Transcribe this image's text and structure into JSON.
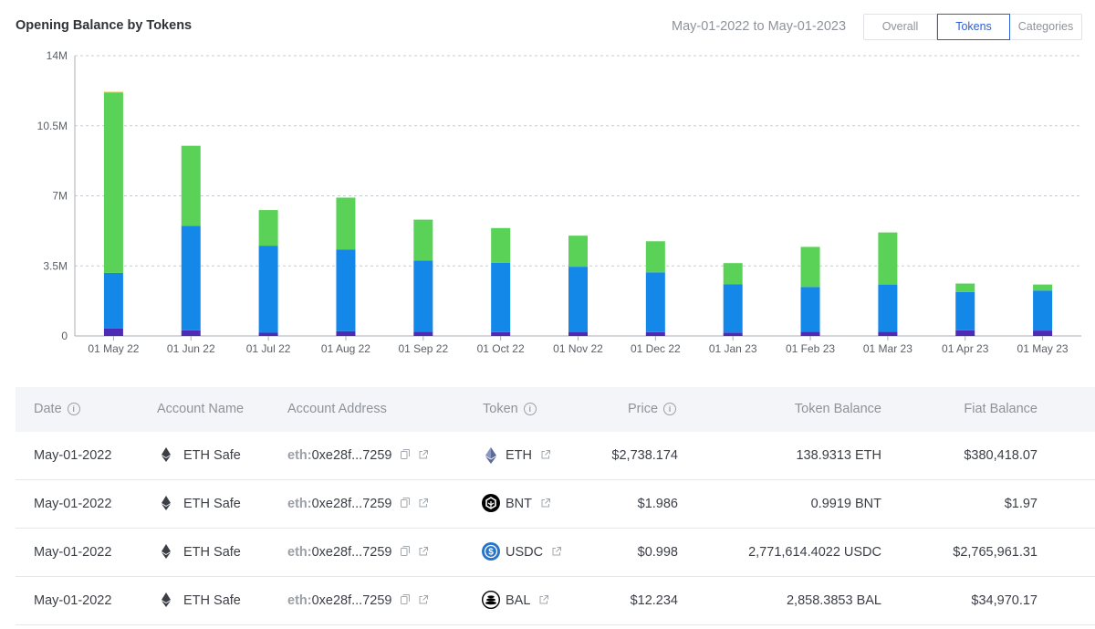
{
  "header": {
    "title": "Opening Balance by Tokens",
    "date_range": "May-01-2022 to May-01-2023",
    "tabs": [
      {
        "label": "Overall",
        "active": false
      },
      {
        "label": "Tokens",
        "active": true
      },
      {
        "label": "Categories",
        "active": false
      }
    ]
  },
  "colors": {
    "accent": "#2a5fd4",
    "series_green": "#5ad257",
    "series_blue": "#1488e8",
    "series_purple": "#4e2bb5",
    "series_yellow": "#e6d34a",
    "grid": "#c8ccd2"
  },
  "chart_data": {
    "type": "bar",
    "stacked": true,
    "categories": [
      "01 May 22",
      "01 Jun 22",
      "01 Jul 22",
      "01 Aug 22",
      "01 Sep 22",
      "01 Oct 22",
      "01 Nov 22",
      "01 Dec 22",
      "01 Jan 23",
      "01 Feb 23",
      "01 Mar 23",
      "01 Apr 23",
      "01 May 23"
    ],
    "series": [
      {
        "color": "#4e2bb5",
        "values": [
          0.38,
          0.28,
          0.16,
          0.24,
          0.21,
          0.19,
          0.2,
          0.19,
          0.17,
          0.21,
          0.21,
          0.28,
          0.27
        ]
      },
      {
        "color": "#1488e8",
        "values": [
          2.77,
          5.22,
          4.35,
          4.07,
          3.56,
          3.47,
          3.26,
          2.99,
          2.42,
          2.24,
          2.36,
          1.92,
          2.0
        ]
      },
      {
        "color": "#5ad257",
        "values": [
          9.02,
          4.0,
          1.78,
          2.6,
          2.04,
          1.73,
          1.55,
          1.55,
          1.05,
          2.0,
          2.6,
          0.42,
          0.3
        ]
      },
      {
        "color": "#e6d34a",
        "values": [
          0.03,
          0.0,
          0.0,
          0.0,
          0.0,
          0.0,
          0.0,
          0.0,
          0.0,
          0.0,
          0.0,
          0.0,
          0.0
        ]
      }
    ],
    "ylim": [
      0,
      14000000
    ],
    "y_ticks": [
      0,
      3500000,
      7000000,
      10500000,
      14000000
    ],
    "y_tick_labels": [
      "0",
      "3.5M",
      "7M",
      "10.5M",
      "14M"
    ],
    "grid": "horizontal-dashed",
    "value_unit": "M"
  },
  "table": {
    "columns": [
      {
        "label": "Date",
        "info": true
      },
      {
        "label": "Account Name",
        "info": false
      },
      {
        "label": "Account Address",
        "info": false
      },
      {
        "label": "Token",
        "info": true
      },
      {
        "label": "Price",
        "info": true
      },
      {
        "label": "Token Balance",
        "info": false
      },
      {
        "label": "Fiat Balance",
        "info": false
      }
    ],
    "rows": [
      {
        "date": "May-01-2022",
        "account_name": "ETH Safe",
        "address_prefix": "eth:",
        "address": "0xe28f...7259",
        "token": "ETH",
        "token_icon": "eth-icon",
        "price": "$2,738.174",
        "token_balance": "138.9313 ETH",
        "fiat_balance": "$380,418.07"
      },
      {
        "date": "May-01-2022",
        "account_name": "ETH Safe",
        "address_prefix": "eth:",
        "address": "0xe28f...7259",
        "token": "BNT",
        "token_icon": "bnt-icon",
        "price": "$1.986",
        "token_balance": "0.9919 BNT",
        "fiat_balance": "$1.97"
      },
      {
        "date": "May-01-2022",
        "account_name": "ETH Safe",
        "address_prefix": "eth:",
        "address": "0xe28f...7259",
        "token": "USDC",
        "token_icon": "usdc-icon",
        "price": "$0.998",
        "token_balance": "2,771,614.4022 USDC",
        "fiat_balance": "$2,765,961.31"
      },
      {
        "date": "May-01-2022",
        "account_name": "ETH Safe",
        "address_prefix": "eth:",
        "address": "0xe28f...7259",
        "token": "BAL",
        "token_icon": "bal-icon",
        "price": "$12.234",
        "token_balance": "2,858.3853 BAL",
        "fiat_balance": "$34,970.17"
      }
    ]
  }
}
